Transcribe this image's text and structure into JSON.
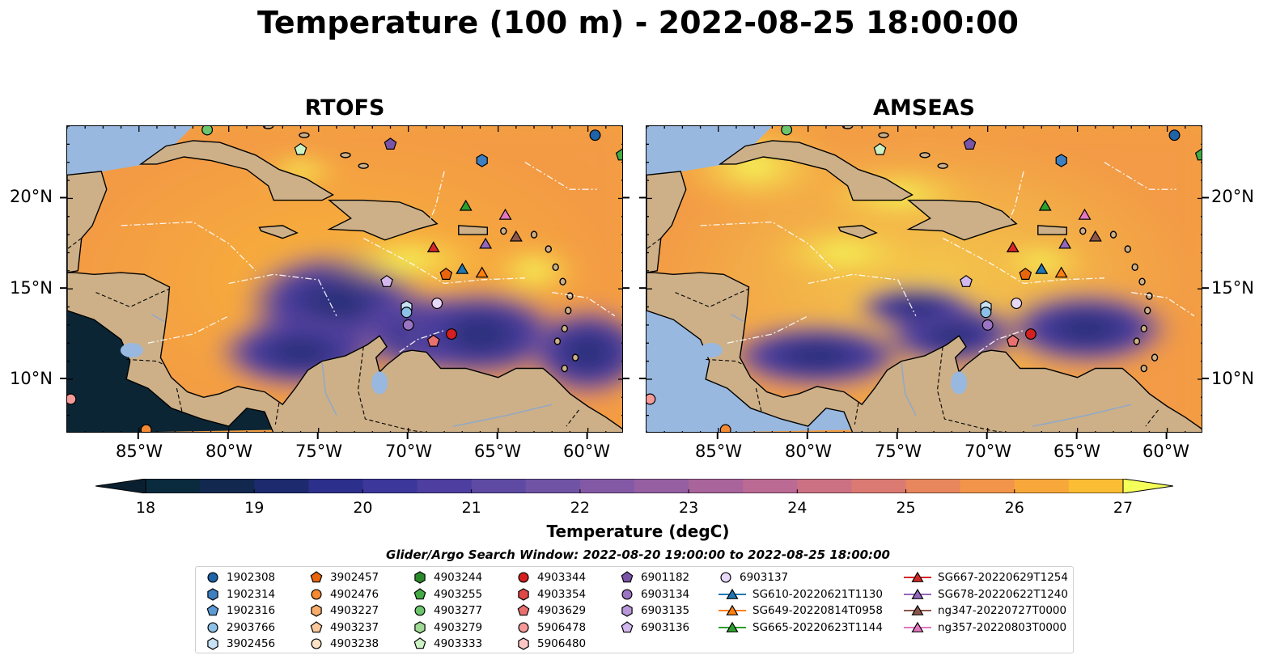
{
  "title": "Temperature (100 m) - 2022-08-25 18:00:00",
  "panels": [
    {
      "name": "RTOFS"
    },
    {
      "name": "AMSEAS"
    }
  ],
  "lon_ticks": [
    "85°W",
    "80°W",
    "75°W",
    "70°W",
    "65°W",
    "60°W"
  ],
  "lat_ticks": [
    "20°N",
    "15°N",
    "10°N"
  ],
  "colorbar": {
    "label": "Temperature (degC)",
    "ticks": [
      "18",
      "19",
      "20",
      "21",
      "22",
      "23",
      "24",
      "25",
      "26",
      "27"
    ],
    "min": 18,
    "max": 27,
    "step": 0.5,
    "colors": [
      "#0a2a3d",
      "#13284f",
      "#1d2a6e",
      "#2d2f8c",
      "#3c379b",
      "#4d3ea0",
      "#5e4aa3",
      "#7053a5",
      "#8359a5",
      "#965fa2",
      "#a9649c",
      "#bb6a93",
      "#cc7184",
      "#db7a72",
      "#e8865e",
      "#f2954a",
      "#f8a83a",
      "#fbbd33",
      "#f9d43a",
      "#f4ed4c"
    ],
    "over_color": "#f4ff5a",
    "under_color": "#0a2030"
  },
  "extent": {
    "lon_min": -89,
    "lon_max": -58,
    "lat_min": 7,
    "lat_max": 24
  },
  "legend_title": "Glider/Argo Search Window: 2022-08-20 19:00:00 to 2022-08-25 18:00:00",
  "legend_columns": [
    [
      {
        "label": "1902308",
        "marker": "circle",
        "color": "#1f63a8"
      },
      {
        "label": "1902314",
        "marker": "hexagon",
        "color": "#3d7fc0"
      },
      {
        "label": "1902316",
        "marker": "pentagon",
        "color": "#5b9bd5"
      },
      {
        "label": "2903766",
        "marker": "circle",
        "color": "#8cc0e6"
      },
      {
        "label": "3902456",
        "marker": "hexagon",
        "color": "#c7e2f5"
      }
    ],
    [
      {
        "label": "3902457",
        "marker": "pentagon",
        "color": "#e8650c"
      },
      {
        "label": "4902476",
        "marker": "circle",
        "color": "#f58a34"
      },
      {
        "label": "4903227",
        "marker": "hexagon",
        "color": "#f9ac6a"
      },
      {
        "label": "4903237",
        "marker": "pentagon",
        "color": "#fbc899"
      },
      {
        "label": "4903238",
        "marker": "circle",
        "color": "#fde2c6"
      }
    ],
    [
      {
        "label": "4903244",
        "marker": "hexagon",
        "color": "#2a8a2a"
      },
      {
        "label": "4903255",
        "marker": "pentagon",
        "color": "#44aa44"
      },
      {
        "label": "4903277",
        "marker": "circle",
        "color": "#6cc46c"
      },
      {
        "label": "4903279",
        "marker": "hexagon",
        "color": "#9fdb96"
      },
      {
        "label": "4903333",
        "marker": "pentagon",
        "color": "#cdf2c4"
      }
    ],
    [
      {
        "label": "4903344",
        "marker": "circle",
        "color": "#d42020"
      },
      {
        "label": "4903354",
        "marker": "hexagon",
        "color": "#e04848"
      },
      {
        "label": "4903629",
        "marker": "pentagon",
        "color": "#ea7070"
      },
      {
        "label": "5906478",
        "marker": "circle",
        "color": "#f59a98"
      },
      {
        "label": "5906480",
        "marker": "hexagon",
        "color": "#fbc6c4"
      }
    ],
    [
      {
        "label": "6901182",
        "marker": "pentagon",
        "color": "#7a54a8"
      },
      {
        "label": "6903134",
        "marker": "circle",
        "color": "#9b74c4"
      },
      {
        "label": "6903135",
        "marker": "hexagon",
        "color": "#b796da"
      },
      {
        "label": "6903136",
        "marker": "pentagon",
        "color": "#d2b8ee"
      }
    ],
    [
      {
        "label": "6903137",
        "marker": "circle",
        "color": "#e8d8f8"
      },
      {
        "label": "SG610-20220621T1130",
        "marker": "triangle",
        "color": "#1f77b4",
        "line": true
      },
      {
        "label": "SG649-20220814T0958",
        "marker": "triangle",
        "color": "#ff7f0e",
        "line": true
      },
      {
        "label": "SG665-20220623T1144",
        "marker": "triangle",
        "color": "#2ca02c",
        "line": true
      }
    ],
    [
      {
        "label": "SG667-20220629T1254",
        "marker": "triangle",
        "color": "#d62728",
        "line": true
      },
      {
        "label": "SG678-20220622T1240",
        "marker": "triangle",
        "color": "#9467bd",
        "line": true
      },
      {
        "label": "ng347-20220727T0000",
        "marker": "triangle",
        "color": "#8c564b",
        "line": true
      },
      {
        "label": "ng357-20220803T0000",
        "marker": "triangle",
        "color": "#e377c2",
        "line": true
      }
    ]
  ],
  "platforms": [
    {
      "id": "1902308",
      "lon": -59.6,
      "lat": 23.5
    },
    {
      "id": "1902314",
      "lon": -65.9,
      "lat": 22.1
    },
    {
      "id": "3902456",
      "lon": -70.1,
      "lat": 14.0
    },
    {
      "id": "2903766",
      "lon": -70.1,
      "lat": 13.7
    },
    {
      "id": "6903134",
      "lon": -70.0,
      "lat": 13.0
    },
    {
      "id": "6903137",
      "lon": -68.4,
      "lat": 14.2
    },
    {
      "id": "6903136",
      "lon": -71.2,
      "lat": 15.4
    },
    {
      "id": "6901182",
      "lon": -71.0,
      "lat": 23.0
    },
    {
      "id": "4903333",
      "lon": -76.0,
      "lat": 22.7
    },
    {
      "id": "4903277",
      "lon": -81.2,
      "lat": 23.8
    },
    {
      "id": "4903255",
      "lon": -58.1,
      "lat": 22.4
    },
    {
      "id": "3902457",
      "lon": -67.9,
      "lat": 15.8
    },
    {
      "id": "4903344",
      "lon": -67.6,
      "lat": 12.5
    },
    {
      "id": "4903629",
      "lon": -68.6,
      "lat": 12.1
    },
    {
      "id": "5906478",
      "lon": -88.8,
      "lat": 8.9
    },
    {
      "id": "4902476",
      "lon": -84.6,
      "lat": 7.2
    },
    {
      "id": "SG665-20220623T1144",
      "lon": -66.8,
      "lat": 19.6
    },
    {
      "id": "ng357-20220803T0000",
      "lon": -64.6,
      "lat": 19.1
    },
    {
      "id": "SG667-20220629T1254",
      "lon": -68.6,
      "lat": 17.3
    },
    {
      "id": "SG678-20220622T1240",
      "lon": -65.7,
      "lat": 17.5
    },
    {
      "id": "ng347-20220727T0000",
      "lon": -64.0,
      "lat": 17.9
    },
    {
      "id": "SG610-20220621T1130",
      "lon": -67.0,
      "lat": 16.1
    },
    {
      "id": "SG649-20220814T0958",
      "lon": -65.9,
      "lat": 15.9
    }
  ]
}
